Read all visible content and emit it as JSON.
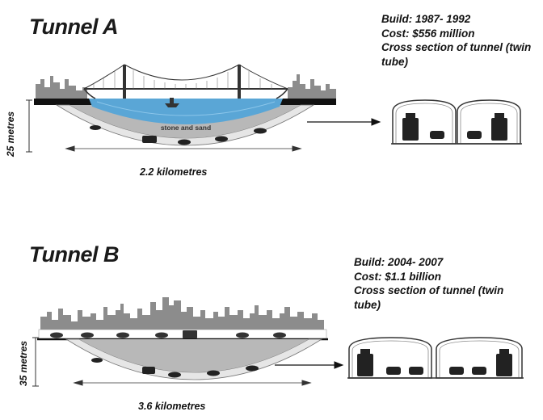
{
  "tunnel_a": {
    "title": "Tunnel A",
    "build": "Build: 1987- 1992",
    "cost": "Cost: $556 million",
    "cross_section_line1": "Cross section of tunnel (twin",
    "cross_section_line2": "tube)",
    "depth": "25 metres",
    "length": "2.2 kilometres",
    "fill_label": "stone and sand"
  },
  "tunnel_b": {
    "title": "Tunnel B",
    "build": "Build: 2004- 2007",
    "cost": "Cost: $1.1 billion",
    "cross_section_line1": "Cross section of tunnel (twin",
    "cross_section_line2": "tube)",
    "depth": "35 metres",
    "length": "3.6 kilometres"
  },
  "colors": {
    "water": "#5aa6d6",
    "fill": "#b8b8b8",
    "skyline": "#8c8c8c",
    "ink": "#111111"
  }
}
